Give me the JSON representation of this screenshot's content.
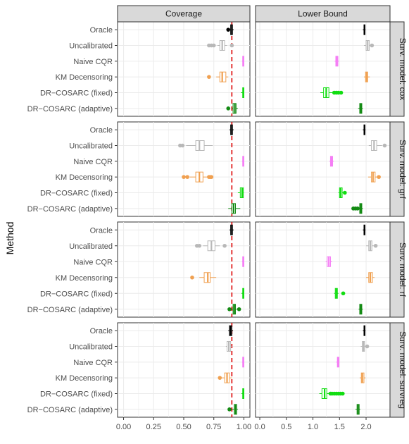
{
  "chart_data": {
    "type": "boxplot",
    "ylabel": "Method",
    "methods": [
      "Oracle",
      "Uncalibrated",
      "Naive CQR",
      "KM Decensoring",
      "DR−COSARC (fixed)",
      "DR−COSARC (adaptive)"
    ],
    "method_colors": [
      "#000000",
      "#b8b8b8",
      "#f57ef5",
      "#f0a050",
      "#11dd11",
      "#138a13"
    ],
    "facet_cols": [
      {
        "label": "Coverage",
        "xlim": [
          -0.05,
          1.05
        ],
        "ticks": [
          0.0,
          0.25,
          0.5,
          0.75,
          1.0
        ],
        "tick_labels": [
          "0.00",
          "0.25",
          "0.50",
          "0.75",
          "1.00"
        ],
        "reference_line": {
          "x": 0.9,
          "color": "#dd0000",
          "style": "dashed"
        }
      },
      {
        "label": "Lower Bound",
        "xlim": [
          -0.08,
          2.45
        ],
        "ticks": [
          0.0,
          0.5,
          1.0,
          1.5,
          2.0
        ],
        "tick_labels": [
          "0.0",
          "0.5",
          "1.0",
          "1.5",
          "2.0"
        ]
      }
    ],
    "facet_rows": [
      "Surv. model: cox",
      "Surv. model: grf",
      "Surv. model: rf",
      "Surv. model: survreg"
    ],
    "grid": true,
    "boxes": [
      [
        [
          {
            "q1": 0.89,
            "med": 0.9,
            "q3": 0.905,
            "lo": 0.875,
            "hi": 0.915,
            "out": [
              0.87
            ]
          },
          {
            "q1": 0.8,
            "med": 0.82,
            "q3": 0.84,
            "lo": 0.78,
            "hi": 0.86,
            "out": [
              0.71,
              0.73,
              0.75,
              0.9
            ]
          },
          {
            "q1": 0.99,
            "med": 0.995,
            "q3": 1.0,
            "lo": 0.985,
            "hi": 1.0,
            "out": []
          },
          {
            "q1": 0.8,
            "med": 0.82,
            "q3": 0.85,
            "lo": 0.77,
            "hi": 0.87,
            "out": [
              0.71
            ]
          },
          {
            "q1": 0.99,
            "med": 0.995,
            "q3": 1.0,
            "lo": 0.975,
            "hi": 1.0,
            "out": []
          },
          {
            "q1": 0.91,
            "med": 0.925,
            "q3": 0.935,
            "lo": 0.9,
            "hi": 0.95,
            "out": [
              0.87
            ]
          }
        ],
        [
          {
            "q1": 1.96,
            "med": 1.97,
            "q3": 1.98,
            "lo": 1.94,
            "hi": 1.99,
            "out": []
          },
          {
            "q1": 2.0,
            "med": 2.03,
            "q3": 2.06,
            "lo": 1.96,
            "hi": 2.1,
            "out": [
              2.11
            ]
          },
          {
            "q1": 1.43,
            "med": 1.45,
            "q3": 1.47,
            "lo": 1.41,
            "hi": 1.49,
            "out": []
          },
          {
            "q1": 1.99,
            "med": 2.01,
            "q3": 2.03,
            "lo": 1.96,
            "hi": 2.07,
            "out": []
          },
          {
            "q1": 1.2,
            "med": 1.25,
            "q3": 1.3,
            "lo": 1.14,
            "hi": 1.37,
            "out": [
              1.4,
              1.44,
              1.48,
              1.53
            ]
          },
          {
            "q1": 1.88,
            "med": 1.9,
            "q3": 1.92,
            "lo": 1.85,
            "hi": 1.94,
            "out": []
          }
        ]
      ],
      [
        [
          {
            "q1": 0.89,
            "med": 0.9,
            "q3": 0.905,
            "lo": 0.88,
            "hi": 0.915,
            "out": []
          },
          {
            "q1": 0.6,
            "med": 0.63,
            "q3": 0.67,
            "lo": 0.52,
            "hi": 0.74,
            "out": [
              0.47,
              0.49
            ]
          },
          {
            "q1": 0.99,
            "med": 0.995,
            "q3": 1.0,
            "lo": 0.985,
            "hi": 1.0,
            "out": []
          },
          {
            "q1": 0.6,
            "med": 0.63,
            "q3": 0.66,
            "lo": 0.55,
            "hi": 0.7,
            "out": [
              0.5,
              0.53,
              0.71,
              0.72,
              0.73
            ]
          },
          {
            "q1": 0.97,
            "med": 0.985,
            "q3": 0.995,
            "lo": 0.95,
            "hi": 1.0,
            "out": []
          },
          {
            "q1": 0.9,
            "med": 0.915,
            "q3": 0.93,
            "lo": 0.87,
            "hi": 0.97,
            "out": []
          }
        ],
        [
          {
            "q1": 1.96,
            "med": 1.97,
            "q3": 1.98,
            "lo": 1.94,
            "hi": 1.99,
            "out": []
          },
          {
            "q1": 2.1,
            "med": 2.15,
            "q3": 2.2,
            "lo": 2.05,
            "hi": 2.3,
            "out": [
              2.35
            ]
          },
          {
            "q1": 1.33,
            "med": 1.35,
            "q3": 1.37,
            "lo": 1.31,
            "hi": 1.39,
            "out": []
          },
          {
            "q1": 2.1,
            "med": 2.13,
            "q3": 2.17,
            "lo": 2.04,
            "hi": 2.21,
            "out": [
              2.24
            ]
          },
          {
            "q1": 1.5,
            "med": 1.52,
            "q3": 1.55,
            "lo": 1.48,
            "hi": 1.57,
            "out": [
              1.6
            ]
          },
          {
            "q1": 1.88,
            "med": 1.9,
            "q3": 1.92,
            "lo": 1.85,
            "hi": 1.94,
            "out": [
              1.76,
              1.8,
              1.84
            ]
          }
        ]
      ],
      [
        [
          {
            "q1": 0.89,
            "med": 0.9,
            "q3": 0.905,
            "lo": 0.88,
            "hi": 0.915,
            "out": []
          },
          {
            "q1": 0.7,
            "med": 0.73,
            "q3": 0.76,
            "lo": 0.66,
            "hi": 0.8,
            "out": [
              0.61,
              0.63,
              0.84
            ]
          },
          {
            "q1": 0.99,
            "med": 0.995,
            "q3": 1.0,
            "lo": 0.985,
            "hi": 1.0,
            "out": []
          },
          {
            "q1": 0.67,
            "med": 0.7,
            "q3": 0.72,
            "lo": 0.63,
            "hi": 0.77,
            "out": [
              0.57
            ]
          },
          {
            "q1": 0.99,
            "med": 0.995,
            "q3": 1.0,
            "lo": 0.98,
            "hi": 1.0,
            "out": []
          },
          {
            "q1": 0.91,
            "med": 0.92,
            "q3": 0.93,
            "lo": 0.89,
            "hi": 0.94,
            "out": [
              0.88,
              0.96
            ]
          }
        ],
        [
          {
            "q1": 1.96,
            "med": 1.97,
            "q3": 1.98,
            "lo": 1.94,
            "hi": 1.99,
            "out": []
          },
          {
            "q1": 2.05,
            "med": 2.08,
            "q3": 2.11,
            "lo": 2.0,
            "hi": 2.16,
            "out": [
              2.18
            ]
          },
          {
            "q1": 1.27,
            "med": 1.3,
            "q3": 1.33,
            "lo": 1.24,
            "hi": 1.36,
            "out": []
          },
          {
            "q1": 2.05,
            "med": 2.08,
            "q3": 2.12,
            "lo": 2.0,
            "hi": 2.16,
            "out": []
          },
          {
            "q1": 1.42,
            "med": 1.44,
            "q3": 1.46,
            "lo": 1.4,
            "hi": 1.48,
            "out": [
              1.57
            ]
          },
          {
            "q1": 1.88,
            "med": 1.9,
            "q3": 1.92,
            "lo": 1.86,
            "hi": 1.94,
            "out": []
          }
        ]
      ],
      [
        [
          {
            "q1": 0.88,
            "med": 0.89,
            "q3": 0.9,
            "lo": 0.87,
            "hi": 0.91,
            "out": []
          },
          {
            "q1": 0.86,
            "med": 0.875,
            "q3": 0.89,
            "lo": 0.85,
            "hi": 0.9,
            "out": []
          },
          {
            "q1": 0.99,
            "med": 0.995,
            "q3": 1.0,
            "lo": 0.985,
            "hi": 1.0,
            "out": []
          },
          {
            "q1": 0.84,
            "med": 0.86,
            "q3": 0.88,
            "lo": 0.81,
            "hi": 0.9,
            "out": [
              0.8
            ]
          },
          {
            "q1": 0.99,
            "med": 0.995,
            "q3": 1.0,
            "lo": 0.98,
            "hi": 1.0,
            "out": []
          },
          {
            "q1": 0.92,
            "med": 0.93,
            "q3": 0.94,
            "lo": 0.9,
            "hi": 0.95,
            "out": [
              0.88
            ]
          }
        ],
        [
          {
            "q1": 1.96,
            "med": 1.97,
            "q3": 1.98,
            "lo": 1.94,
            "hi": 1.99,
            "out": []
          },
          {
            "q1": 1.93,
            "med": 1.95,
            "q3": 1.97,
            "lo": 1.9,
            "hi": 2.0,
            "out": [
              2.02
            ]
          },
          {
            "q1": 1.46,
            "med": 1.47,
            "q3": 1.49,
            "lo": 1.44,
            "hi": 1.5,
            "out": []
          },
          {
            "q1": 1.91,
            "med": 1.93,
            "q3": 1.96,
            "lo": 1.88,
            "hi": 1.99,
            "out": []
          },
          {
            "q1": 1.17,
            "med": 1.22,
            "q3": 1.26,
            "lo": 1.12,
            "hi": 1.3,
            "out": [
              1.33,
              1.36,
              1.4,
              1.44,
              1.48,
              1.52,
              1.56
            ]
          },
          {
            "q1": 1.83,
            "med": 1.85,
            "q3": 1.87,
            "lo": 1.8,
            "hi": 1.89,
            "out": []
          }
        ]
      ]
    ]
  }
}
